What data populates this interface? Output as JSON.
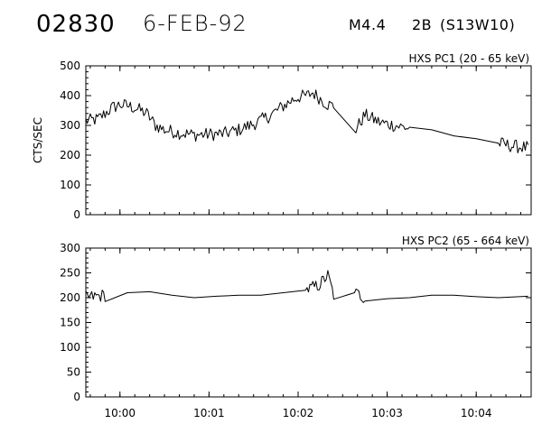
{
  "header": {
    "event_id": "02830",
    "date": "6-FEB-92",
    "flare_class": "M4.4",
    "importance": "2B",
    "location": "(S13W10)"
  },
  "chart_data": [
    {
      "type": "line",
      "title": "HXS PC1 (20 - 65 keV)",
      "ylabel": "CTS/SEC",
      "xlabel": "",
      "ylim": [
        0,
        500
      ],
      "yticks": [
        0,
        100,
        200,
        300,
        400,
        500
      ],
      "xlim": [
        "09:59:37",
        "10:04:37"
      ],
      "xticks": [
        "10:00",
        "10:01",
        "10:02",
        "10:03",
        "10:04"
      ],
      "series": [
        {
          "x": [
            "09:59:37",
            "09:59:45",
            "09:59:50",
            "09:59:55",
            "10:00:00",
            "10:00:06",
            "10:00:12",
            "10:00:18",
            "10:00:24",
            "10:00:30",
            "10:00:40",
            "10:00:50",
            "10:01:00",
            "10:01:10",
            "10:01:20",
            "10:01:30",
            "10:01:40",
            "10:01:50",
            "10:01:56",
            "10:02:00",
            "10:02:06",
            "10:02:10",
            "10:02:16",
            "10:02:20",
            "10:02:24",
            "10:02:38",
            "10:02:45",
            "10:02:55",
            "10:03:05",
            "10:03:15",
            "10:03:30",
            "10:03:45",
            "10:04:00",
            "10:04:15",
            "10:04:25",
            "10:04:35"
          ],
          "values": [
            315,
            320,
            340,
            360,
            370,
            365,
            355,
            340,
            300,
            285,
            275,
            268,
            270,
            272,
            285,
            305,
            330,
            365,
            385,
            395,
            400,
            410,
            385,
            370,
            365,
            280,
            335,
            310,
            300,
            290,
            285,
            265,
            255,
            240,
            230,
            225
          ]
        }
      ]
    },
    {
      "type": "line",
      "title": "HXS PC2 (65 - 664 keV)",
      "ylabel": "",
      "xlabel": "",
      "ylim": [
        0,
        300
      ],
      "yticks": [
        0,
        50,
        100,
        150,
        200,
        250,
        300
      ],
      "xlim": [
        "09:59:37",
        "10:04:37"
      ],
      "xticks": [
        "10:00",
        "10:01",
        "10:02",
        "10:03",
        "10:04"
      ],
      "series": [
        {
          "x": [
            "09:59:37",
            "09:59:50",
            "10:00:05",
            "10:00:20",
            "10:00:35",
            "10:00:50",
            "10:01:05",
            "10:01:20",
            "10:01:35",
            "10:01:50",
            "10:02:05",
            "10:02:14",
            "10:02:20",
            "10:02:24",
            "10:02:38",
            "10:02:45",
            "10:03:00",
            "10:03:15",
            "10:03:30",
            "10:03:45",
            "10:04:00",
            "10:04:15",
            "10:04:35"
          ],
          "values": [
            200,
            205,
            210,
            212,
            205,
            200,
            203,
            205,
            205,
            210,
            215,
            225,
            245,
            205,
            210,
            200,
            198,
            200,
            205,
            205,
            202,
            200,
            203
          ]
        }
      ]
    }
  ]
}
